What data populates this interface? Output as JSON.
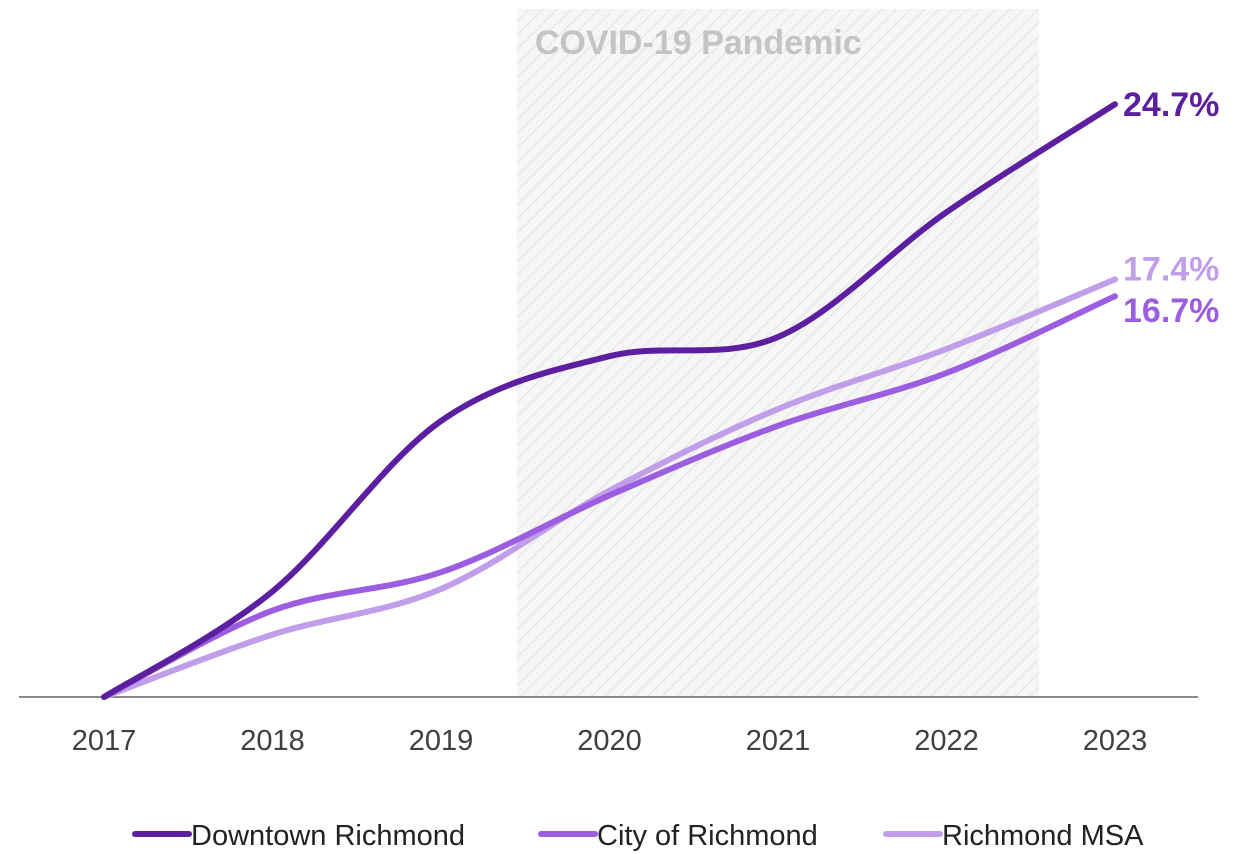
{
  "chart_data": {
    "type": "line",
    "title": "",
    "xlabel": "",
    "ylabel": "",
    "categories": [
      "2017",
      "2018",
      "2019",
      "2020",
      "2021",
      "2022",
      "2023"
    ],
    "ylim": [
      0,
      26
    ],
    "grid": false,
    "legend_position": "bottom",
    "series": [
      {
        "name": "Downtown Richmond",
        "color": "#5b1fa0",
        "values": [
          0,
          4.4,
          11.5,
          14.2,
          15.0,
          20.2,
          24.7
        ],
        "end_label": "24.7%"
      },
      {
        "name": "City of Richmond",
        "color": "#9b5ee0",
        "values": [
          0,
          3.6,
          5.2,
          8.4,
          11.3,
          13.5,
          16.7
        ],
        "end_label": "16.7%"
      },
      {
        "name": "Richmond MSA",
        "color": "#c09ee9",
        "values": [
          0,
          2.6,
          4.5,
          8.6,
          12.0,
          14.5,
          17.4
        ],
        "end_label": "17.4%"
      }
    ],
    "annotations": [
      {
        "type": "shaded-band",
        "label": "COVID-19 Pandemic",
        "x_start": 2019.45,
        "x_end": 2022.55,
        "fill": "hatched-light-gray"
      }
    ]
  }
}
